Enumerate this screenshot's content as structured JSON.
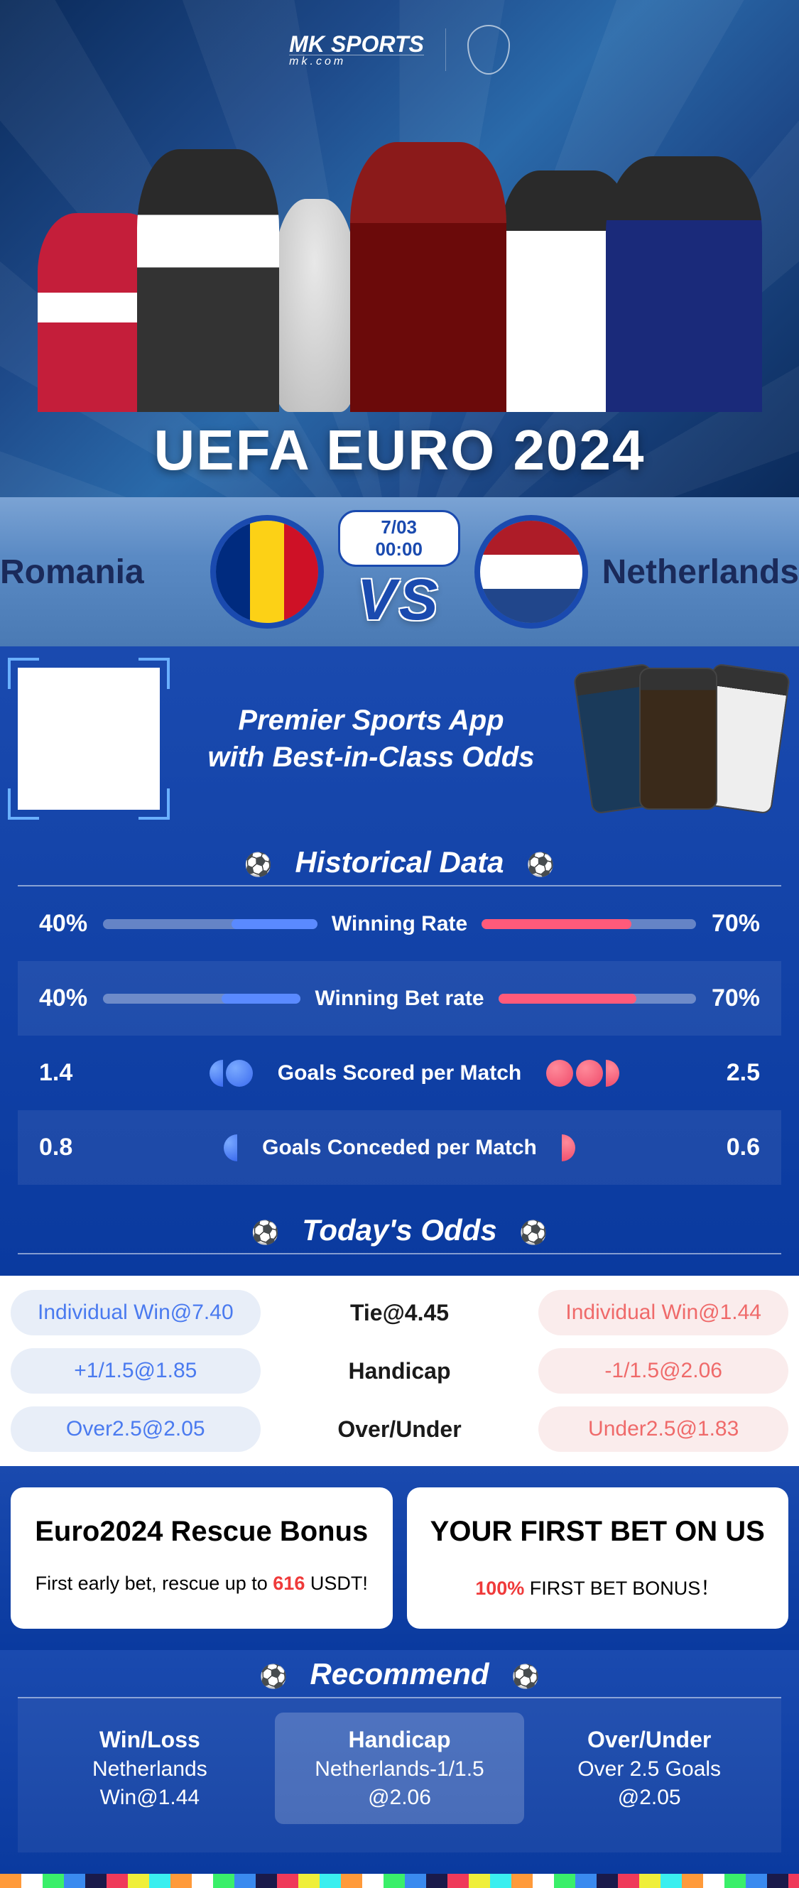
{
  "brand": {
    "name": "MK SPORTS",
    "sub": "mk.com"
  },
  "hero": {
    "title": "UEFA EURO 2024"
  },
  "match": {
    "home": "Romania",
    "away": "Netherlands",
    "datetime": "7/03 00:00",
    "vs": "VS",
    "home_flag": [
      "#002b7f",
      "#fcd116",
      "#ce1126"
    ],
    "away_flag": [
      "#ae1c28",
      "#ffffff",
      "#21468b"
    ]
  },
  "promo": {
    "tagline": "Premier Sports App\nwith Best-in-Class Odds"
  },
  "sections": {
    "historical": "Historical Data",
    "odds": "Today's Odds",
    "recommend": "Recommend"
  },
  "historical": [
    {
      "label": "Winning Rate",
      "left_val": "40%",
      "left_pct": 40,
      "right_val": "70%",
      "right_pct": 70,
      "type": "bar"
    },
    {
      "label": "Winning Bet rate",
      "left_val": "40%",
      "left_pct": 40,
      "right_val": "70%",
      "right_pct": 70,
      "type": "bar"
    },
    {
      "label": "Goals Scored per Match",
      "left_val": "1.4",
      "left_balls": 1.4,
      "right_val": "2.5",
      "right_balls": 2.5,
      "type": "balls"
    },
    {
      "label": "Goals Conceded per Match",
      "left_val": "0.8",
      "left_balls": 0.8,
      "right_val": "0.6",
      "right_balls": 0.6,
      "type": "balls"
    }
  ],
  "odds": [
    {
      "left": "Individual Win@7.40",
      "mid": "Tie@4.45",
      "right": "Individual Win@1.44"
    },
    {
      "left": "+1/1.5@1.85",
      "mid": "Handicap",
      "right": "-1/1.5@2.06"
    },
    {
      "left": "Over2.5@2.05",
      "mid": "Over/Under",
      "right": "Under2.5@1.83"
    }
  ],
  "bonuses": [
    {
      "title": "Euro2024 Rescue Bonus",
      "sub_pre": "First early bet, rescue up to ",
      "hl": "616",
      "sub_post": " USDT!"
    },
    {
      "title": "YOUR FIRST BET ON US",
      "sub_pre": "",
      "hl": "100%",
      "sub_post": " FIRST BET BONUS！"
    }
  ],
  "recommend": [
    {
      "t1": "Win/Loss",
      "t2": "Netherlands",
      "t3": "Win@1.44",
      "active": false
    },
    {
      "t1": "Handicap",
      "t2": "Netherlands-1/1.5",
      "t3": "@2.06",
      "active": true
    },
    {
      "t1": "Over/Under",
      "t2": "Over 2.5 Goals",
      "t3": "@2.05",
      "active": false
    }
  ],
  "colors": {
    "bar_blue": "#5a8aff",
    "bar_red": "#ff5a7a",
    "pill_blue_bg": "#e8eef8",
    "pill_blue_fg": "#4a7aef",
    "pill_red_bg": "#faecec",
    "pill_red_fg": "#ef6a6a"
  }
}
